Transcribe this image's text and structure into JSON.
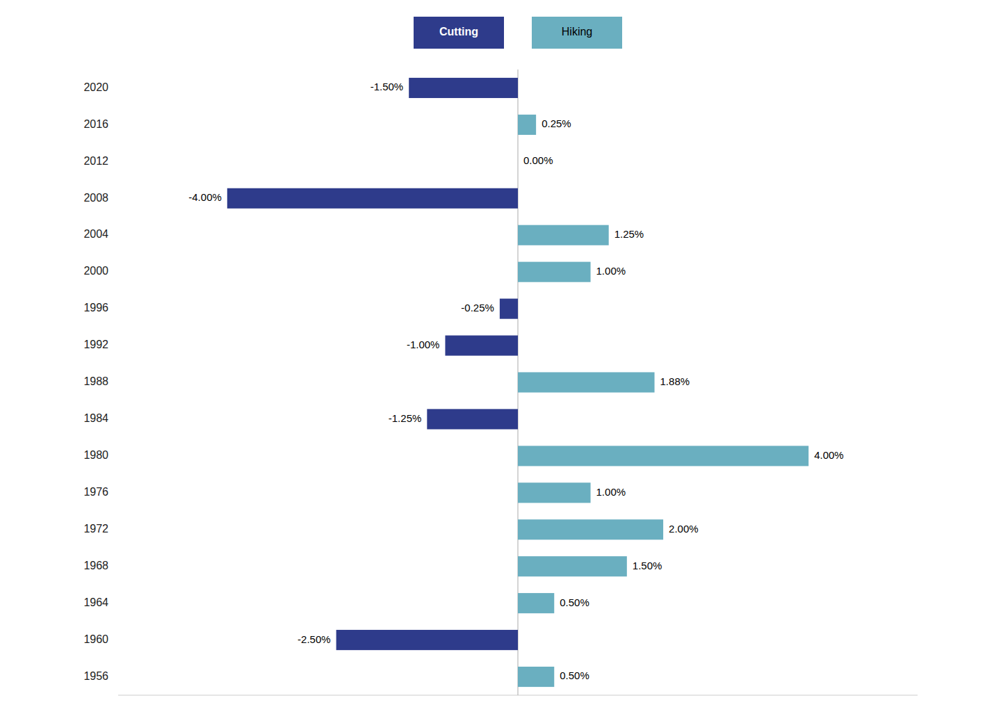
{
  "chart_data": {
    "type": "bar",
    "orientation": "horizontal",
    "categories": [
      "2020",
      "2016",
      "2012",
      "2008",
      "2004",
      "2000",
      "1996",
      "1992",
      "1988",
      "1984",
      "1980",
      "1976",
      "1972",
      "1968",
      "1964",
      "1960",
      "1956"
    ],
    "series": [
      {
        "name": "Cutting",
        "color": "#2E3B8B",
        "values": [
          -1.5,
          null,
          null,
          -4.0,
          null,
          null,
          -0.25,
          -1.0,
          null,
          -1.25,
          null,
          null,
          null,
          null,
          null,
          -2.5,
          null
        ],
        "value_labels": [
          "-1.50%",
          null,
          null,
          "-4.00%",
          null,
          null,
          "-0.25%",
          "-1.00%",
          null,
          "-1.25%",
          null,
          null,
          null,
          null,
          null,
          "-2.50%",
          null
        ]
      },
      {
        "name": "Hiking",
        "color": "#6AAFC0",
        "values": [
          null,
          0.25,
          0.0,
          null,
          1.25,
          1.0,
          null,
          null,
          1.88,
          null,
          4.0,
          1.0,
          2.0,
          1.5,
          0.5,
          null,
          0.5
        ],
        "value_labels": [
          null,
          "0.25%",
          "0.00%",
          null,
          "1.25%",
          "1.00%",
          null,
          null,
          "1.88%",
          null,
          "4.00%",
          "1.00%",
          "2.00%",
          "1.50%",
          "0.50%",
          null,
          "0.50%"
        ]
      }
    ],
    "xlim": [
      -5.5,
      5.5
    ],
    "data_labels": true,
    "tick_labels": "y",
    "grid": false
  }
}
